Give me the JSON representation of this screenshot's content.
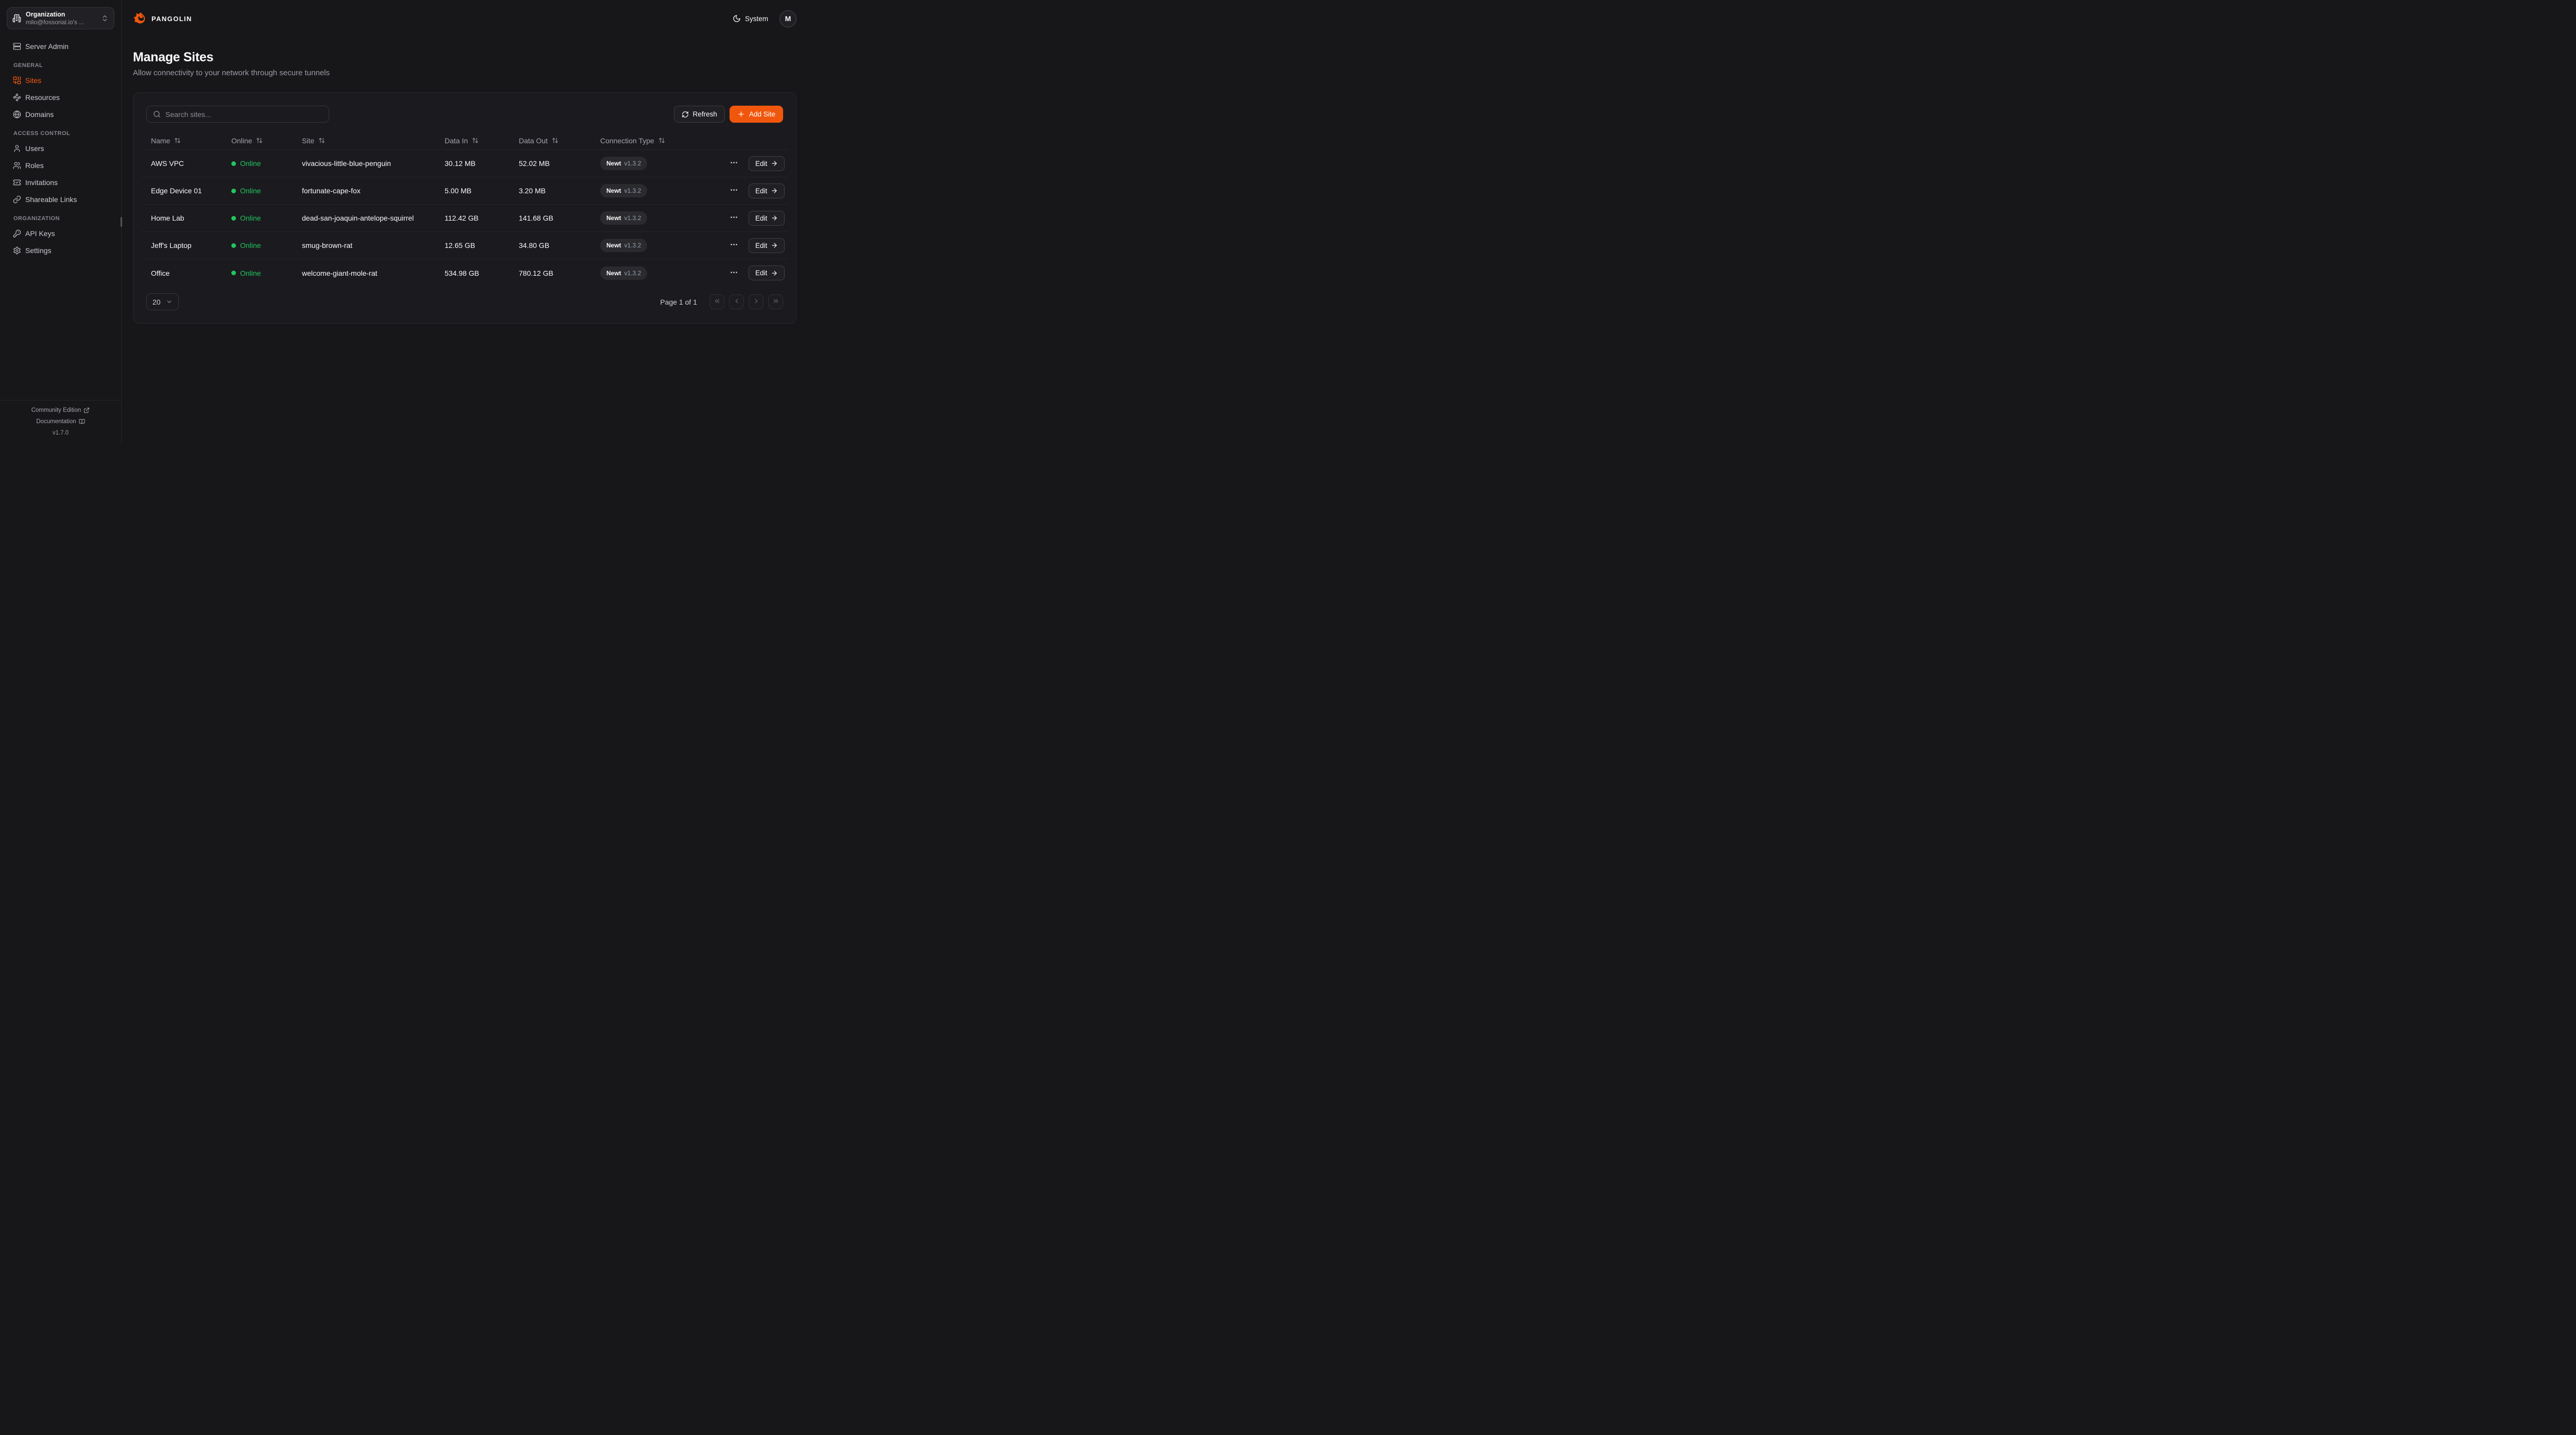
{
  "brand": {
    "name": "PANGOLIN",
    "logo_icon": "pangolin-logo"
  },
  "org_switcher": {
    "label": "Organization",
    "value": "milo@fossorial.io's ...",
    "icon": "building",
    "chevrons_icon": "chevrons-up-down"
  },
  "sidebar": {
    "server_admin": {
      "label": "Server Admin",
      "icon": "server"
    },
    "sections": [
      {
        "label": "GENERAL",
        "items": [
          {
            "label": "Sites",
            "icon": "combine",
            "active": true
          },
          {
            "label": "Resources",
            "icon": "waypoints",
            "active": false
          },
          {
            "label": "Domains",
            "icon": "globe",
            "active": false
          }
        ]
      },
      {
        "label": "ACCESS CONTROL",
        "items": [
          {
            "label": "Users",
            "icon": "user",
            "active": false
          },
          {
            "label": "Roles",
            "icon": "users",
            "active": false
          },
          {
            "label": "Invitations",
            "icon": "ticket-check",
            "active": false
          },
          {
            "label": "Shareable Links",
            "icon": "link",
            "active": false
          }
        ]
      },
      {
        "label": "ORGANIZATION",
        "items": [
          {
            "label": "API Keys",
            "icon": "key",
            "active": false
          },
          {
            "label": "Settings",
            "icon": "settings",
            "active": false
          }
        ]
      }
    ],
    "footer": {
      "community": "Community Edition",
      "community_icon": "external-link",
      "documentation": "Documentation",
      "documentation_icon": "book-open",
      "version": "v1.7.0"
    }
  },
  "topbar": {
    "theme_label": "System",
    "theme_icon": "moon",
    "avatar_initial": "M"
  },
  "page": {
    "title": "Manage Sites",
    "subtitle": "Allow connectivity to your network through secure tunnels"
  },
  "toolbar": {
    "search_placeholder": "Search sites...",
    "search_icon": "search",
    "refresh_label": "Refresh",
    "refresh_icon": "refresh-cw",
    "add_site_label": "Add Site",
    "add_icon": "plus"
  },
  "table": {
    "columns": [
      "Name",
      "Online",
      "Site",
      "Data In",
      "Data Out",
      "Connection Type"
    ],
    "sort_icon": "arrow-up-down",
    "rows": [
      {
        "name": "AWS VPC",
        "status": "Online",
        "site": "vivacious-little-blue-penguin",
        "data_in": "30.12 MB",
        "data_out": "52.02 MB",
        "conn_name": "Newt",
        "conn_version": "v1.3.2",
        "edit_label": "Edit"
      },
      {
        "name": "Edge Device 01",
        "status": "Online",
        "site": "fortunate-cape-fox",
        "data_in": "5.00 MB",
        "data_out": "3.20 MB",
        "conn_name": "Newt",
        "conn_version": "v1.3.2",
        "edit_label": "Edit"
      },
      {
        "name": "Home Lab",
        "status": "Online",
        "site": "dead-san-joaquin-antelope-squirrel",
        "data_in": "112.42 GB",
        "data_out": "141.68 GB",
        "conn_name": "Newt",
        "conn_version": "v1.3.2",
        "edit_label": "Edit"
      },
      {
        "name": "Jeff's Laptop",
        "status": "Online",
        "site": "smug-brown-rat",
        "data_in": "12.65 GB",
        "data_out": "34.80 GB",
        "conn_name": "Newt",
        "conn_version": "v1.3.2",
        "edit_label": "Edit"
      },
      {
        "name": "Office",
        "status": "Online",
        "site": "welcome-giant-mole-rat",
        "data_in": "534.98 GB",
        "data_out": "780.12 GB",
        "conn_name": "Newt",
        "conn_version": "v1.3.2",
        "edit_label": "Edit"
      }
    ]
  },
  "pagination": {
    "page_size": "20",
    "page_info": "Page 1 of 1",
    "buttons": [
      "first",
      "previous",
      "next",
      "last"
    ]
  },
  "colors": {
    "accent": "#f0570d",
    "online": "#22c55e"
  }
}
